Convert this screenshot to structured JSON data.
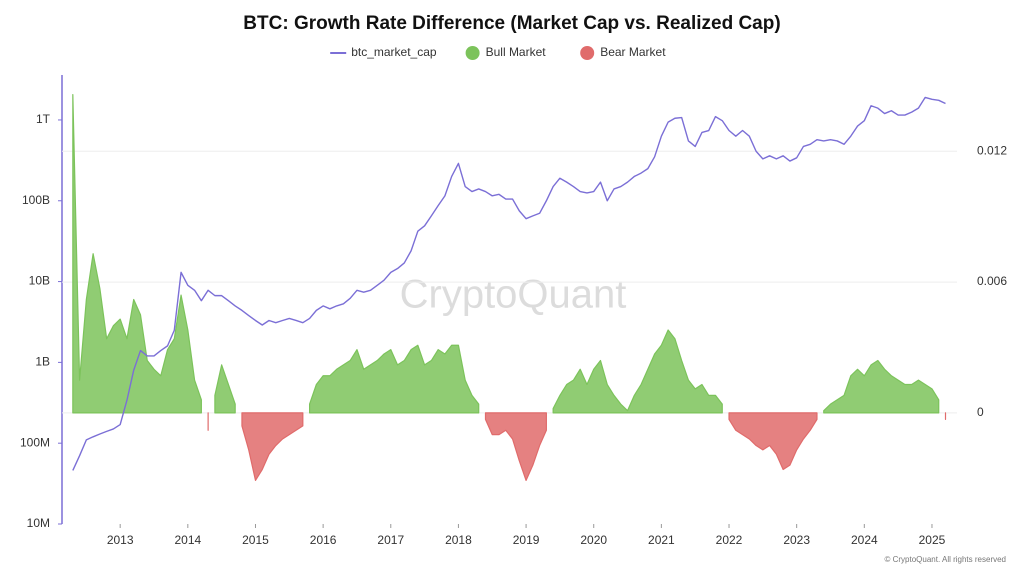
{
  "chart_data": {
    "type": "line",
    "title": "BTC: Growth Rate Difference (Market Cap vs. Realized Cap)",
    "watermark": "CryptoQuant",
    "footer": "© CryptoQuant. All rights reserved",
    "log_y": true,
    "grid": true,
    "legend": "top",
    "xlim": [
      2012.14,
      2025.37
    ],
    "xticks": [
      2013,
      2014,
      2015,
      2016,
      2017,
      2018,
      2019,
      2020,
      2021,
      2022,
      2023,
      2024,
      2025
    ],
    "ylim": [
      10000000,
      3600000000000
    ],
    "yticks": [
      {
        "value": 10000000,
        "label": "10M"
      },
      {
        "value": 100000000,
        "label": "100M"
      },
      {
        "value": 1000000000,
        "label": "1B"
      },
      {
        "value": 10000000000,
        "label": "10B"
      },
      {
        "value": 100000000000,
        "label": "100B"
      },
      {
        "value": 1000000000000,
        "label": "1T"
      }
    ],
    "y2lim": [
      -0.0051,
      0.0155
    ],
    "y2ticks": [
      0,
      0.006,
      0.012
    ],
    "x": [
      2012.3,
      2012.4,
      2012.5,
      2012.6,
      2012.7,
      2012.8,
      2012.9,
      2013.0,
      2013.1,
      2013.2,
      2013.3,
      2013.4,
      2013.5,
      2013.6,
      2013.7,
      2013.8,
      2013.9,
      2014.0,
      2014.1,
      2014.2,
      2014.3,
      2014.4,
      2014.5,
      2014.6,
      2014.7,
      2014.8,
      2014.9,
      2015.0,
      2015.1,
      2015.2,
      2015.3,
      2015.4,
      2015.5,
      2015.6,
      2015.7,
      2015.8,
      2015.9,
      2016.0,
      2016.1,
      2016.2,
      2016.3,
      2016.4,
      2016.5,
      2016.6,
      2016.7,
      2016.8,
      2016.9,
      2017.0,
      2017.1,
      2017.2,
      2017.3,
      2017.4,
      2017.5,
      2017.6,
      2017.7,
      2017.8,
      2017.9,
      2018.0,
      2018.1,
      2018.2,
      2018.3,
      2018.4,
      2018.5,
      2018.6,
      2018.7,
      2018.8,
      2018.9,
      2019.0,
      2019.1,
      2019.2,
      2019.3,
      2019.4,
      2019.5,
      2019.6,
      2019.7,
      2019.8,
      2019.9,
      2020.0,
      2020.1,
      2020.2,
      2020.3,
      2020.4,
      2020.5,
      2020.6,
      2020.7,
      2020.8,
      2020.9,
      2021.0,
      2021.1,
      2021.2,
      2021.3,
      2021.4,
      2021.5,
      2021.6,
      2021.7,
      2021.8,
      2021.9,
      2022.0,
      2022.1,
      2022.2,
      2022.3,
      2022.4,
      2022.5,
      2022.6,
      2022.7,
      2022.8,
      2022.9,
      2023.0,
      2023.1,
      2023.2,
      2023.3,
      2023.4,
      2023.5,
      2023.6,
      2023.7,
      2023.8,
      2023.9,
      2024.0,
      2024.1,
      2024.2,
      2024.3,
      2024.4,
      2024.5,
      2024.6,
      2024.7,
      2024.8,
      2024.9,
      2025.0,
      2025.1,
      2025.2
    ],
    "series": [
      {
        "name": "Bull Market",
        "type": "area",
        "axis": "y2",
        "color": "#7cc35b",
        "values": [
          0.0146,
          0.0015,
          0.0052,
          0.0073,
          0.0057,
          0.0034,
          0.004,
          0.0043,
          0.0034,
          0.0052,
          0.0045,
          0.0024,
          0.002,
          0.0017,
          0.0029,
          0.0034,
          0.0054,
          0.0038,
          0.0015,
          0.0006,
          null,
          0.0008,
          0.0022,
          0.0013,
          0.0004,
          null,
          null,
          null,
          null,
          null,
          null,
          null,
          null,
          null,
          null,
          0.0004,
          0.0013,
          0.0017,
          0.0017,
          0.002,
          0.0022,
          0.0024,
          0.0029,
          0.002,
          0.0022,
          0.0024,
          0.0027,
          0.0029,
          0.0022,
          0.0024,
          0.0029,
          0.0031,
          0.0022,
          0.0024,
          0.0029,
          0.0027,
          0.0031,
          0.0031,
          0.0015,
          0.0008,
          0.0004,
          null,
          null,
          null,
          null,
          null,
          null,
          null,
          null,
          null,
          null,
          0.0002,
          0.0008,
          0.0013,
          0.0015,
          0.002,
          0.0013,
          0.002,
          0.0024,
          0.0013,
          0.0008,
          0.0004,
          0.0001,
          0.0008,
          0.0013,
          0.002,
          0.0027,
          0.0031,
          0.0038,
          0.0034,
          0.0024,
          0.0015,
          0.0011,
          0.0013,
          0.0008,
          0.0008,
          0.0004,
          null,
          null,
          null,
          null,
          null,
          null,
          null,
          null,
          null,
          null,
          null,
          null,
          null,
          null,
          0.0001,
          0.0004,
          0.0006,
          0.0008,
          0.0017,
          0.002,
          0.0017,
          0.0022,
          0.0024,
          0.002,
          0.0017,
          0.0015,
          0.0013,
          0.0013,
          0.0015,
          0.0013,
          0.0011,
          0.0006,
          null
        ]
      },
      {
        "name": "Bear Market",
        "type": "area",
        "axis": "y2",
        "color": "#e06b6b",
        "values": [
          null,
          null,
          null,
          null,
          null,
          null,
          null,
          null,
          null,
          null,
          null,
          null,
          null,
          null,
          null,
          null,
          null,
          null,
          null,
          null,
          -0.0008,
          null,
          null,
          null,
          null,
          -0.0006,
          -0.0017,
          -0.0031,
          -0.0026,
          -0.0019,
          -0.0015,
          -0.0012,
          -0.001,
          -0.0008,
          -0.0006,
          null,
          null,
          null,
          null,
          null,
          null,
          null,
          null,
          null,
          null,
          null,
          null,
          null,
          null,
          null,
          null,
          null,
          null,
          null,
          null,
          null,
          null,
          null,
          null,
          null,
          null,
          -0.0003,
          -0.001,
          -0.001,
          -0.0008,
          -0.0012,
          -0.0022,
          -0.0031,
          -0.0024,
          -0.0015,
          -0.0008,
          null,
          null,
          null,
          null,
          null,
          null,
          null,
          null,
          null,
          null,
          null,
          null,
          null,
          null,
          null,
          null,
          null,
          null,
          null,
          null,
          null,
          null,
          null,
          null,
          null,
          null,
          -0.0003,
          -0.0008,
          -0.001,
          -0.0012,
          -0.0015,
          -0.0017,
          -0.0015,
          -0.0019,
          -0.0026,
          -0.0024,
          -0.0017,
          -0.0012,
          -0.0008,
          -0.0003,
          null,
          null,
          null,
          null,
          null,
          null,
          null,
          null,
          null,
          null,
          null,
          null,
          null,
          null,
          null,
          null,
          null,
          null,
          -0.0003
        ]
      },
      {
        "name": "btc_market_cap",
        "type": "line",
        "axis": "y",
        "color": "#7b6fd6",
        "values": [
          46000000,
          70000000,
          110000000,
          120000000,
          130000000,
          140000000,
          150000000,
          170000000,
          340000000,
          800000000,
          1400000000,
          1200000000,
          1200000000,
          1400000000,
          1600000000,
          2500000000,
          13000000000,
          9000000000,
          7800000000,
          5800000000,
          7800000000,
          6700000000,
          6700000000,
          5800000000,
          5000000000,
          4400000000,
          3800000000,
          3300000000,
          2900000000,
          3300000000,
          3100000000,
          3300000000,
          3500000000,
          3300000000,
          3100000000,
          3500000000,
          4400000000,
          5000000000,
          4600000000,
          5000000000,
          5300000000,
          6200000000,
          7800000000,
          7400000000,
          7800000000,
          9000000000,
          10400000000,
          13000000000,
          14500000000,
          17000000000,
          24000000000,
          42000000000,
          49000000000,
          65000000000,
          87000000000,
          115000000000,
          200000000000,
          290000000000,
          150000000000,
          130000000000,
          140000000000,
          130000000000,
          115000000000,
          120000000000,
          105000000000,
          105000000000,
          75000000000,
          60000000000,
          65000000000,
          70000000000,
          100000000000,
          150000000000,
          190000000000,
          170000000000,
          150000000000,
          130000000000,
          125000000000,
          130000000000,
          170000000000,
          100000000000,
          140000000000,
          150000000000,
          170000000000,
          200000000000,
          220000000000,
          250000000000,
          350000000000,
          630000000000,
          940000000000,
          1050000000000,
          1070000000000,
          550000000000,
          470000000000,
          700000000000,
          740000000000,
          1100000000000,
          980000000000,
          740000000000,
          630000000000,
          740000000000,
          630000000000,
          410000000000,
          330000000000,
          360000000000,
          330000000000,
          360000000000,
          310000000000,
          340000000000,
          470000000000,
          500000000000,
          570000000000,
          550000000000,
          570000000000,
          550000000000,
          500000000000,
          630000000000,
          840000000000,
          980000000000,
          1500000000000,
          1400000000000,
          1200000000000,
          1300000000000,
          1150000000000,
          1150000000000,
          1250000000000,
          1400000000000,
          1900000000000,
          1800000000000,
          1750000000000,
          1600000000000
        ]
      }
    ]
  }
}
